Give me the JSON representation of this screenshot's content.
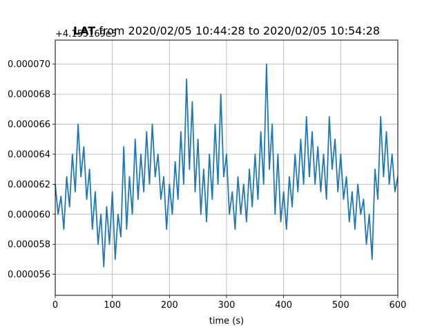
{
  "chart_data": {
    "type": "line",
    "title_bold": "LAT",
    "title": " from 2020/02/05 10:44:28 to 2020/02/05 10:54:28",
    "xlabel": "time (s)",
    "ylabel": "",
    "y_offset_label": "+4.155169e5",
    "xlim": [
      0,
      600
    ],
    "ylim": [
      5.46e-05,
      7.16e-05
    ],
    "xticks": [
      0,
      100,
      200,
      300,
      400,
      500,
      600
    ],
    "xtick_labels": [
      "0",
      "100",
      "200",
      "300",
      "400",
      "500",
      "600"
    ],
    "yticks": [
      5.6e-05,
      5.8e-05,
      6e-05,
      6.2e-05,
      6.4e-05,
      6.6e-05,
      6.8e-05,
      7e-05
    ],
    "ytick_labels": [
      "0.000056",
      "0.000058",
      "0.000060",
      "0.000062",
      "0.000064",
      "0.000066",
      "0.000068",
      "0.000070"
    ],
    "grid": true,
    "series": [
      {
        "color": "#1f77b4",
        "x": [
          0,
          5,
          10,
          15,
          20,
          25,
          30,
          35,
          40,
          45,
          50,
          55,
          60,
          65,
          70,
          75,
          80,
          85,
          90,
          95,
          100,
          105,
          110,
          115,
          120,
          125,
          130,
          135,
          140,
          145,
          150,
          155,
          160,
          165,
          170,
          175,
          180,
          185,
          190,
          195,
          200,
          205,
          210,
          215,
          220,
          225,
          230,
          235,
          240,
          245,
          250,
          255,
          260,
          265,
          270,
          275,
          280,
          285,
          290,
          295,
          300,
          305,
          310,
          315,
          320,
          325,
          330,
          335,
          340,
          345,
          350,
          355,
          360,
          365,
          370,
          375,
          380,
          385,
          390,
          395,
          400,
          405,
          410,
          415,
          420,
          425,
          430,
          435,
          440,
          445,
          450,
          455,
          460,
          465,
          470,
          475,
          480,
          485,
          490,
          495,
          500,
          505,
          510,
          515,
          520,
          525,
          530,
          535,
          540,
          545,
          550,
          555,
          560,
          565,
          570,
          575,
          580,
          585,
          590,
          595,
          600
        ],
        "y": [
          6.2e-05,
          6e-05,
          6.12e-05,
          5.9e-05,
          6.25e-05,
          6.05e-05,
          6.4e-05,
          6.15e-05,
          6.6e-05,
          6.25e-05,
          6.45e-05,
          6.1e-05,
          6.3e-05,
          5.9e-05,
          6.15e-05,
          5.8e-05,
          6e-05,
          5.65e-05,
          6.05e-05,
          5.8e-05,
          6.15e-05,
          5.7e-05,
          6e-05,
          5.85e-05,
          6.45e-05,
          5.9e-05,
          6.25e-05,
          6e-05,
          6.5e-05,
          6.1e-05,
          6.4e-05,
          6.15e-05,
          6.55e-05,
          6.2e-05,
          6.6e-05,
          6.25e-05,
          6.4e-05,
          6.1e-05,
          6.25e-05,
          5.9e-05,
          6.2e-05,
          6e-05,
          6.35e-05,
          6.1e-05,
          6.55e-05,
          6.2e-05,
          6.9e-05,
          6.3e-05,
          6.75e-05,
          6.15e-05,
          6.5e-05,
          6e-05,
          6.3e-05,
          5.95e-05,
          6.4e-05,
          6.1e-05,
          6.6e-05,
          6.2e-05,
          6.8e-05,
          6.25e-05,
          6.4e-05,
          6e-05,
          6.15e-05,
          5.9e-05,
          6.25e-05,
          6e-05,
          6.2e-05,
          5.95e-05,
          6.3e-05,
          6.05e-05,
          6.4e-05,
          6.1e-05,
          6.55e-05,
          6.2e-05,
          7e-05,
          6.3e-05,
          6.6e-05,
          6e-05,
          6.4e-05,
          5.95e-05,
          6.15e-05,
          5.9e-05,
          6.25e-05,
          6.05e-05,
          6.4e-05,
          6.15e-05,
          6.5e-05,
          6.2e-05,
          6.65e-05,
          6.25e-05,
          6.55e-05,
          6.2e-05,
          6.45e-05,
          6.15e-05,
          6.4e-05,
          6.1e-05,
          6.65e-05,
          6.3e-05,
          6.5e-05,
          6.15e-05,
          6.4e-05,
          6.1e-05,
          6.25e-05,
          5.95e-05,
          6.15e-05,
          5.9e-05,
          6.2e-05,
          6e-05,
          6.1e-05,
          5.8e-05,
          6e-05,
          5.7e-05,
          6.3e-05,
          6.1e-05,
          6.65e-05,
          6.25e-05,
          6.55e-05,
          6.2e-05,
          6.4e-05,
          6.15e-05,
          6.25e-05
        ]
      }
    ]
  }
}
